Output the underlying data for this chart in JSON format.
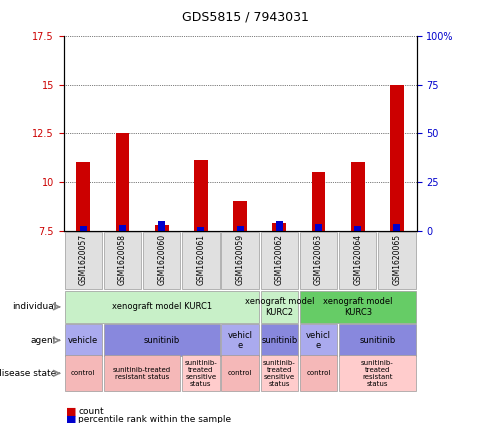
{
  "title": "GDS5815 / 7943031",
  "samples": [
    "GSM1620057",
    "GSM1620058",
    "GSM1620060",
    "GSM1620061",
    "GSM1620059",
    "GSM1620062",
    "GSM1620063",
    "GSM1620064",
    "GSM1620065"
  ],
  "count_values": [
    11.0,
    12.5,
    7.8,
    11.1,
    9.0,
    7.9,
    10.5,
    11.0,
    15.0
  ],
  "percentile_values": [
    2.5,
    3.0,
    5.0,
    2.0,
    2.5,
    5.0,
    3.5,
    2.5,
    3.5
  ],
  "bar_bottom": 7.5,
  "ylim_left": [
    7.5,
    17.5
  ],
  "ylim_right": [
    0,
    100
  ],
  "yticks_left": [
    7.5,
    10.0,
    12.5,
    15.0,
    17.5
  ],
  "yticks_right": [
    0,
    25,
    50,
    75,
    100
  ],
  "ytick_labels_left": [
    "7.5",
    "10",
    "12.5",
    "15",
    "17.5"
  ],
  "ytick_labels_right": [
    "0",
    "25",
    "50",
    "75",
    "100%"
  ],
  "count_color": "#cc0000",
  "percentile_color": "#0000cc",
  "individual_groups": [
    {
      "label": "xenograft model KURC1",
      "start": 0,
      "end": 4,
      "color": "#c8f0c8"
    },
    {
      "label": "xenograft model\nKURC2",
      "start": 5,
      "end": 5,
      "color": "#c8f0c8"
    },
    {
      "label": "xenograft model\nKURC3",
      "start": 6,
      "end": 8,
      "color": "#66cc66"
    }
  ],
  "agent_groups": [
    {
      "label": "vehicle",
      "start": 0,
      "end": 0,
      "color": "#aaaaee"
    },
    {
      "label": "sunitinib",
      "start": 1,
      "end": 3,
      "color": "#8888dd"
    },
    {
      "label": "vehicl\ne",
      "start": 4,
      "end": 4,
      "color": "#aaaaee"
    },
    {
      "label": "sunitinib",
      "start": 5,
      "end": 5,
      "color": "#8888dd"
    },
    {
      "label": "vehicl\ne",
      "start": 6,
      "end": 6,
      "color": "#aaaaee"
    },
    {
      "label": "sunitinib",
      "start": 7,
      "end": 8,
      "color": "#8888dd"
    }
  ],
  "disease_groups": [
    {
      "label": "control",
      "start": 0,
      "end": 0,
      "color": "#f5b8b8"
    },
    {
      "label": "sunitinib-treated\nresistant status",
      "start": 1,
      "end": 2,
      "color": "#f5b8b8"
    },
    {
      "label": "sunitinib-\ntreated\nsensitive\nstatus",
      "start": 3,
      "end": 3,
      "color": "#ffcccc"
    },
    {
      "label": "control",
      "start": 4,
      "end": 4,
      "color": "#f5b8b8"
    },
    {
      "label": "sunitinib-\ntreated\nsensitive\nstatus",
      "start": 5,
      "end": 5,
      "color": "#ffcccc"
    },
    {
      "label": "control",
      "start": 6,
      "end": 6,
      "color": "#f5b8b8"
    },
    {
      "label": "sunitinib-\ntreated\nresistant\nstatus",
      "start": 7,
      "end": 8,
      "color": "#ffcccc"
    }
  ],
  "row_labels": [
    "individual",
    "agent",
    "disease state"
  ],
  "legend_items": [
    {
      "label": "count",
      "color": "#cc0000"
    },
    {
      "label": "percentile rank within the sample",
      "color": "#0000cc"
    }
  ]
}
